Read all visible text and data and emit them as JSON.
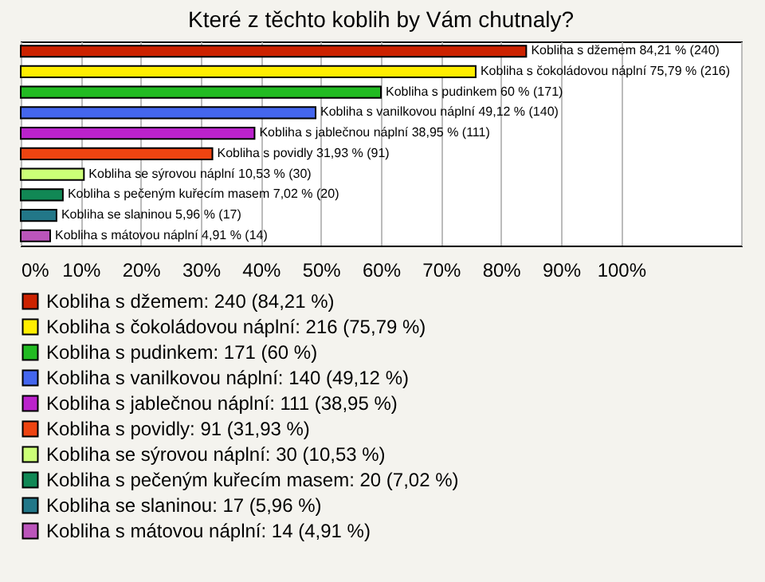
{
  "chart_data": {
    "type": "bar",
    "orientation": "horizontal",
    "title": "Které z těchto koblih by Vám chutnaly?",
    "categories": [
      null,
      null,
      null,
      null,
      null,
      null,
      null,
      null,
      null,
      null
    ],
    "series": [
      {
        "name": "Kobliha s džemem: 240 (84,21 %)",
        "color": "#cc2200",
        "values": [
          84.21,
          null,
          null,
          null,
          null,
          null,
          null,
          null,
          null,
          null
        ],
        "value_labels": [
          "Kobliha s džemem 84,21 % (240)",
          null,
          null,
          null,
          null,
          null,
          null,
          null,
          null,
          null
        ]
      },
      {
        "name": "Kobliha s čokoládovou náplní: 216 (75,79 %)",
        "color": "#ffee00",
        "values": [
          null,
          75.79,
          null,
          null,
          null,
          null,
          null,
          null,
          null,
          null
        ],
        "value_labels": [
          null,
          "Kobliha s čokoládovou náplní 75,79 % (216)",
          null,
          null,
          null,
          null,
          null,
          null,
          null,
          null
        ]
      },
      {
        "name": "Kobliha s pudinkem: 171 (60 %)",
        "color": "#22bb22",
        "values": [
          null,
          null,
          60,
          null,
          null,
          null,
          null,
          null,
          null,
          null
        ],
        "value_labels": [
          null,
          null,
          "Kobliha s pudinkem 60 % (171)",
          null,
          null,
          null,
          null,
          null,
          null,
          null
        ]
      },
      {
        "name": "Kobliha s vanilkovou náplní: 140 (49,12 %)",
        "color": "#4466ee",
        "values": [
          null,
          null,
          null,
          49.12,
          null,
          null,
          null,
          null,
          null,
          null
        ],
        "value_labels": [
          null,
          null,
          null,
          "Kobliha s vanilkovou náplní 49,12 % (140)",
          null,
          null,
          null,
          null,
          null,
          null
        ]
      },
      {
        "name": "Kobliha s jablečnou náplní: 111 (38,95 %)",
        "color": "#bb22cc",
        "values": [
          null,
          null,
          null,
          null,
          38.95,
          null,
          null,
          null,
          null,
          null
        ],
        "value_labels": [
          null,
          null,
          null,
          null,
          "Kobliha s jablečnou náplní 38,95 % (111)",
          null,
          null,
          null,
          null,
          null
        ]
      },
      {
        "name": "Kobliha s povidly: 91 (31,93 %)",
        "color": "#ee4411",
        "values": [
          null,
          null,
          null,
          null,
          null,
          31.93,
          null,
          null,
          null,
          null
        ],
        "value_labels": [
          null,
          null,
          null,
          null,
          null,
          "Kobliha s povidly 31,93 % (91)",
          null,
          null,
          null,
          null
        ]
      },
      {
        "name": "Kobliha se sýrovou náplní: 30 (10,53 %)",
        "color": "#ccff77",
        "values": [
          null,
          null,
          null,
          null,
          null,
          null,
          10.53,
          null,
          null,
          null
        ],
        "value_labels": [
          null,
          null,
          null,
          null,
          null,
          null,
          "Kobliha se sýrovou náplní 10,53 % (30)",
          null,
          null,
          null
        ]
      },
      {
        "name": "Kobliha s pečeným kuřecím masem: 20 (7,02 %)",
        "color": "#118855",
        "values": [
          null,
          null,
          null,
          null,
          null,
          null,
          null,
          7.02,
          null,
          null
        ],
        "value_labels": [
          null,
          null,
          null,
          null,
          null,
          null,
          null,
          "Kobliha s pečeným kuřecím masem 7,02 % (20)",
          null,
          null
        ]
      },
      {
        "name": "Kobliha se slaninou: 17 (5,96 %)",
        "color": "#227788",
        "values": [
          null,
          null,
          null,
          null,
          null,
          null,
          null,
          null,
          5.96,
          null
        ],
        "value_labels": [
          null,
          null,
          null,
          null,
          null,
          null,
          null,
          null,
          "Kobliha se slaninou 5,96 % (17)",
          null
        ]
      },
      {
        "name": "Kobliha s mátovou náplní: 14 (4,91 %)",
        "color": "#bb55bb",
        "values": [
          null,
          null,
          null,
          null,
          null,
          null,
          null,
          null,
          null,
          4.91
        ],
        "value_labels": [
          null,
          null,
          null,
          null,
          null,
          null,
          null,
          null,
          null,
          "Kobliha s mátovou náplní 4,91 % (14)"
        ]
      }
    ],
    "xlim": [
      0,
      120
    ],
    "xticks": [
      {
        "value": 0,
        "label": "0%"
      },
      {
        "value": 10,
        "label": "10%"
      },
      {
        "value": 20,
        "label": "20%"
      },
      {
        "value": 30,
        "label": "30%"
      },
      {
        "value": 40,
        "label": "40%"
      },
      {
        "value": 50,
        "label": "50%"
      },
      {
        "value": 60,
        "label": "60%"
      },
      {
        "value": 70,
        "label": "70%"
      },
      {
        "value": 80,
        "label": "80%"
      },
      {
        "value": 90,
        "label": "90%"
      },
      {
        "value": 100,
        "label": "100%"
      },
      {
        "value": 120,
        "label": null
      }
    ],
    "grid": "x",
    "legend": "bottom",
    "tick_labels": "x"
  }
}
